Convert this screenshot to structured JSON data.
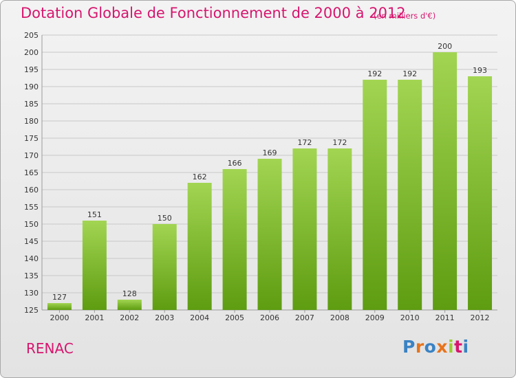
{
  "header": {
    "title": "Dotation Globale de Fonctionnement de 2000 à 2012",
    "unit_note": "(en milliers d'€)"
  },
  "footer": {
    "commune": "RENAC",
    "brand_letters": [
      "P",
      "r",
      "o",
      "x",
      "i",
      "t",
      "i"
    ],
    "brand_colors": [
      "#3a82c4",
      "#e8731b",
      "#3a82c4",
      "#e8731b",
      "#9acd32",
      "#d6156e",
      "#3a82c4"
    ]
  },
  "colors": {
    "bar_light": "#a2d552",
    "bar_dark": "#5e9c11",
    "title": "#d6156e",
    "grid": "#c8c8c8",
    "axis_text": "#333333"
  },
  "chart_data": {
    "type": "bar",
    "title": "Dotation Globale de Fonctionnement de 2000 à 2012",
    "subtitle": "(en milliers d'€)",
    "xlabel": "",
    "ylabel": "",
    "categories": [
      "2000",
      "2001",
      "2002",
      "2003",
      "2004",
      "2005",
      "2006",
      "2007",
      "2008",
      "2009",
      "2010",
      "2011",
      "2012"
    ],
    "values": [
      127,
      151,
      128,
      150,
      162,
      166,
      169,
      172,
      172,
      192,
      192,
      200,
      193
    ],
    "ylim": [
      125,
      205
    ],
    "yticks": [
      125,
      130,
      135,
      140,
      145,
      150,
      155,
      160,
      165,
      170,
      175,
      180,
      185,
      190,
      195,
      200,
      205
    ],
    "grid": true,
    "legend": "none"
  }
}
